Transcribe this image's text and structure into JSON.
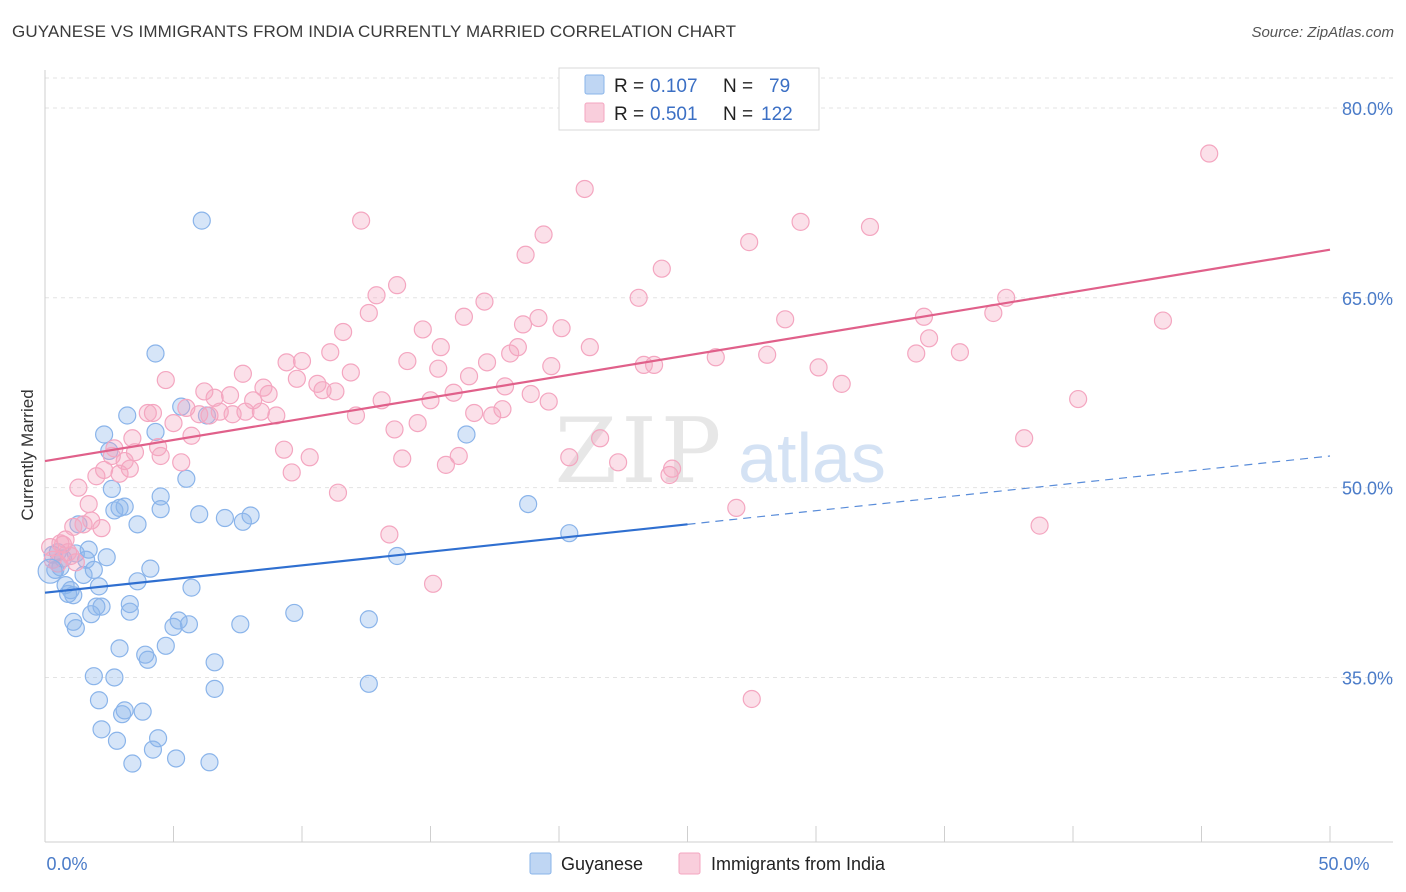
{
  "title": "GUYANESE VS IMMIGRANTS FROM INDIA CURRENTLY MARRIED CORRELATION CHART",
  "source": "Source: ZipAtlas.com",
  "watermark": {
    "zip": "ZIP",
    "atlas": "atlas"
  },
  "chart_data": {
    "type": "scatter",
    "xlabel": "",
    "ylabel": "Currently Married",
    "xlim": [
      0,
      50
    ],
    "ylim": [
      22,
      83
    ],
    "x_tick_labels": [
      {
        "value": 0,
        "label": "0.0%"
      },
      {
        "value": 50,
        "label": "50.0%"
      }
    ],
    "y_tick_labels": [
      {
        "value": 35,
        "label": "35.0%"
      },
      {
        "value": 50,
        "label": "50.0%"
      },
      {
        "value": 65,
        "label": "65.0%"
      },
      {
        "value": 80,
        "label": "80.0%"
      }
    ],
    "grid": true,
    "legend_position": "top-center",
    "stats_legend": [
      {
        "r_label": "R =",
        "r_value": "0.107",
        "n_label": "N =",
        "n_value": "79"
      },
      {
        "r_label": "R =",
        "r_value": "0.501",
        "n_label": "N =",
        "n_value": "122"
      }
    ],
    "series": [
      {
        "name": "Guyanese",
        "color": "#8ab4ea",
        "line_color": "#2f6fd0",
        "trend": {
          "x0": 0,
          "y0": 41.7,
          "x1": 25,
          "y1": 47.1,
          "x_dash_end": 50,
          "y_dash_end": 52.5
        },
        "points": [
          [
            0.3,
            44.7
          ],
          [
            0.4,
            43.5
          ],
          [
            0.5,
            44.9
          ],
          [
            0.6,
            43.7
          ],
          [
            0.7,
            44.4
          ],
          [
            0.8,
            42.3
          ],
          [
            0.9,
            41.6
          ],
          [
            1.0,
            41.9
          ],
          [
            1.1,
            39.4
          ],
          [
            1.1,
            41.5
          ],
          [
            1.2,
            38.9
          ],
          [
            1.2,
            44.8
          ],
          [
            1.3,
            47.1
          ],
          [
            1.5,
            43.1
          ],
          [
            1.6,
            44.3
          ],
          [
            1.7,
            45.1
          ],
          [
            1.8,
            40.0
          ],
          [
            1.9,
            43.5
          ],
          [
            1.9,
            35.1
          ],
          [
            2.0,
            40.6
          ],
          [
            2.1,
            42.2
          ],
          [
            2.1,
            33.2
          ],
          [
            2.2,
            40.6
          ],
          [
            2.2,
            30.9
          ],
          [
            2.3,
            54.2
          ],
          [
            2.4,
            44.5
          ],
          [
            2.5,
            52.9
          ],
          [
            2.6,
            49.9
          ],
          [
            2.7,
            48.2
          ],
          [
            2.7,
            35.0
          ],
          [
            2.8,
            30.0
          ],
          [
            2.9,
            48.4
          ],
          [
            2.9,
            37.3
          ],
          [
            3.0,
            32.1
          ],
          [
            3.1,
            32.4
          ],
          [
            3.1,
            48.5
          ],
          [
            3.2,
            55.7
          ],
          [
            3.3,
            40.2
          ],
          [
            3.3,
            40.8
          ],
          [
            3.4,
            28.2
          ],
          [
            3.6,
            42.6
          ],
          [
            3.6,
            47.1
          ],
          [
            3.8,
            32.3
          ],
          [
            3.9,
            36.8
          ],
          [
            4.0,
            36.4
          ],
          [
            4.1,
            43.6
          ],
          [
            4.2,
            29.3
          ],
          [
            4.3,
            54.4
          ],
          [
            4.3,
            60.6
          ],
          [
            4.4,
            30.2
          ],
          [
            4.5,
            49.3
          ],
          [
            4.5,
            48.3
          ],
          [
            4.7,
            37.5
          ],
          [
            5.0,
            39.0
          ],
          [
            5.1,
            28.6
          ],
          [
            5.2,
            39.5
          ],
          [
            5.3,
            56.4
          ],
          [
            5.5,
            50.7
          ],
          [
            5.6,
            39.2
          ],
          [
            5.7,
            42.1
          ],
          [
            6.0,
            47.9
          ],
          [
            6.1,
            71.1
          ],
          [
            6.3,
            55.7
          ],
          [
            6.4,
            28.3
          ],
          [
            6.6,
            36.2
          ],
          [
            6.6,
            34.1
          ],
          [
            7.0,
            47.6
          ],
          [
            7.6,
            39.2
          ],
          [
            7.7,
            47.3
          ],
          [
            8.0,
            47.8
          ],
          [
            9.7,
            40.1
          ],
          [
            12.6,
            39.6
          ],
          [
            12.6,
            34.5
          ],
          [
            13.7,
            44.6
          ],
          [
            16.4,
            54.2
          ],
          [
            18.8,
            48.7
          ],
          [
            20.4,
            46.4
          ]
        ]
      },
      {
        "name": "Immigrants from India",
        "color": "#f4a6c0",
        "line_color": "#e0608a",
        "trend": {
          "x0": 0,
          "y0": 52.1,
          "x1": 50,
          "y1": 68.8
        },
        "points": [
          [
            0.2,
            45.3
          ],
          [
            0.3,
            44.3
          ],
          [
            0.5,
            44.0
          ],
          [
            0.6,
            45.6
          ],
          [
            0.7,
            45.5
          ],
          [
            0.8,
            45.9
          ],
          [
            0.9,
            44.9
          ],
          [
            1.0,
            44.6
          ],
          [
            1.1,
            46.9
          ],
          [
            1.2,
            44.1
          ],
          [
            1.3,
            50.0
          ],
          [
            1.5,
            47.1
          ],
          [
            1.7,
            48.7
          ],
          [
            1.8,
            47.4
          ],
          [
            2.0,
            50.9
          ],
          [
            2.2,
            46.8
          ],
          [
            2.3,
            51.4
          ],
          [
            2.6,
            52.5
          ],
          [
            2.7,
            53.1
          ],
          [
            2.9,
            51.1
          ],
          [
            3.1,
            52.1
          ],
          [
            3.3,
            51.5
          ],
          [
            3.4,
            53.9
          ],
          [
            3.5,
            52.8
          ],
          [
            4.0,
            55.9
          ],
          [
            4.2,
            55.9
          ],
          [
            4.4,
            53.2
          ],
          [
            4.5,
            52.5
          ],
          [
            4.7,
            58.5
          ],
          [
            5.0,
            55.1
          ],
          [
            5.3,
            52.0
          ],
          [
            5.5,
            56.3
          ],
          [
            5.7,
            54.1
          ],
          [
            6.0,
            55.8
          ],
          [
            6.2,
            57.6
          ],
          [
            6.4,
            55.7
          ],
          [
            6.6,
            57.1
          ],
          [
            6.8,
            56.0
          ],
          [
            7.2,
            57.3
          ],
          [
            7.3,
            55.8
          ],
          [
            7.7,
            59.0
          ],
          [
            7.8,
            56.0
          ],
          [
            8.1,
            56.9
          ],
          [
            8.4,
            56.0
          ],
          [
            8.5,
            57.9
          ],
          [
            8.7,
            57.4
          ],
          [
            9.0,
            55.7
          ],
          [
            9.3,
            53.0
          ],
          [
            9.4,
            59.9
          ],
          [
            9.6,
            51.2
          ],
          [
            9.8,
            58.6
          ],
          [
            10.0,
            60.0
          ],
          [
            10.3,
            52.4
          ],
          [
            10.6,
            58.2
          ],
          [
            10.8,
            57.7
          ],
          [
            11.1,
            60.7
          ],
          [
            11.3,
            57.6
          ],
          [
            11.4,
            49.6
          ],
          [
            11.6,
            62.3
          ],
          [
            11.9,
            59.1
          ],
          [
            12.1,
            55.7
          ],
          [
            12.3,
            71.1
          ],
          [
            12.6,
            63.8
          ],
          [
            12.9,
            65.2
          ],
          [
            13.1,
            56.9
          ],
          [
            13.4,
            46.3
          ],
          [
            13.6,
            54.6
          ],
          [
            13.7,
            66.0
          ],
          [
            13.9,
            52.3
          ],
          [
            14.1,
            60.0
          ],
          [
            14.5,
            55.1
          ],
          [
            14.7,
            62.5
          ],
          [
            15.0,
            56.9
          ],
          [
            15.1,
            42.4
          ],
          [
            15.3,
            59.4
          ],
          [
            15.4,
            61.1
          ],
          [
            15.6,
            51.8
          ],
          [
            15.9,
            57.5
          ],
          [
            16.1,
            52.5
          ],
          [
            16.3,
            63.5
          ],
          [
            16.5,
            58.8
          ],
          [
            16.7,
            55.9
          ],
          [
            17.1,
            64.7
          ],
          [
            17.2,
            59.9
          ],
          [
            17.4,
            55.7
          ],
          [
            17.8,
            56.2
          ],
          [
            17.9,
            58.0
          ],
          [
            18.1,
            60.6
          ],
          [
            18.4,
            61.1
          ],
          [
            18.6,
            62.9
          ],
          [
            18.7,
            68.4
          ],
          [
            18.9,
            57.4
          ],
          [
            19.2,
            63.4
          ],
          [
            19.4,
            70.0
          ],
          [
            19.6,
            56.8
          ],
          [
            19.7,
            59.6
          ],
          [
            20.1,
            62.6
          ],
          [
            20.4,
            52.4
          ],
          [
            21.0,
            73.6
          ],
          [
            21.2,
            61.1
          ],
          [
            21.6,
            53.9
          ],
          [
            22.3,
            52.0
          ],
          [
            23.1,
            65.0
          ],
          [
            23.3,
            59.7
          ],
          [
            23.7,
            59.7
          ],
          [
            24.0,
            67.3
          ],
          [
            24.3,
            51.0
          ],
          [
            24.4,
            51.5
          ],
          [
            26.1,
            60.3
          ],
          [
            26.9,
            48.4
          ],
          [
            27.5,
            33.3
          ],
          [
            27.4,
            69.4
          ],
          [
            28.1,
            60.5
          ],
          [
            28.8,
            63.3
          ],
          [
            29.4,
            71.0
          ],
          [
            30.1,
            59.5
          ],
          [
            31.0,
            58.2
          ],
          [
            32.1,
            70.6
          ],
          [
            33.9,
            60.6
          ],
          [
            34.2,
            63.5
          ],
          [
            34.4,
            61.8
          ],
          [
            35.6,
            60.7
          ],
          [
            36.9,
            63.8
          ],
          [
            37.4,
            65.0
          ],
          [
            38.1,
            53.9
          ],
          [
            38.7,
            47.0
          ],
          [
            40.2,
            57.0
          ],
          [
            43.5,
            63.2
          ],
          [
            45.3,
            76.4
          ]
        ]
      }
    ]
  }
}
